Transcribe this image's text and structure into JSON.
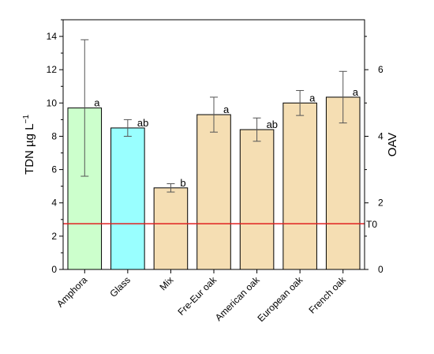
{
  "chart_data": {
    "type": "bar",
    "categories": [
      "Amphora",
      "Glass",
      "Mix",
      "Fre-Eur oak",
      "American oak",
      "European oak",
      "French oak"
    ],
    "values": [
      9.7,
      8.5,
      4.9,
      9.3,
      8.4,
      10.0,
      10.35
    ],
    "errors": [
      4.1,
      0.5,
      0.25,
      1.05,
      0.7,
      0.75,
      1.55
    ],
    "significance": [
      "a",
      "ab",
      "b",
      "a",
      "ab",
      "a",
      "a"
    ],
    "bar_colors": [
      "#ccffcc",
      "#99ffff",
      "#f5deb3",
      "#f5deb3",
      "#f5deb3",
      "#f5deb3",
      "#f5deb3"
    ],
    "ylabel": "TDN µg L",
    "ylabel_superscript": "−1",
    "ylim": [
      0,
      15
    ],
    "yticks": [
      0,
      2,
      4,
      6,
      8,
      10,
      12,
      14
    ],
    "y2label": "OAV",
    "y2lim": [
      0,
      7.5
    ],
    "y2ticks": [
      0,
      2,
      4,
      6
    ],
    "reference_line": {
      "value": 2.75,
      "label": "T0",
      "color": "#e02020"
    },
    "grid": false,
    "legend": "none"
  }
}
